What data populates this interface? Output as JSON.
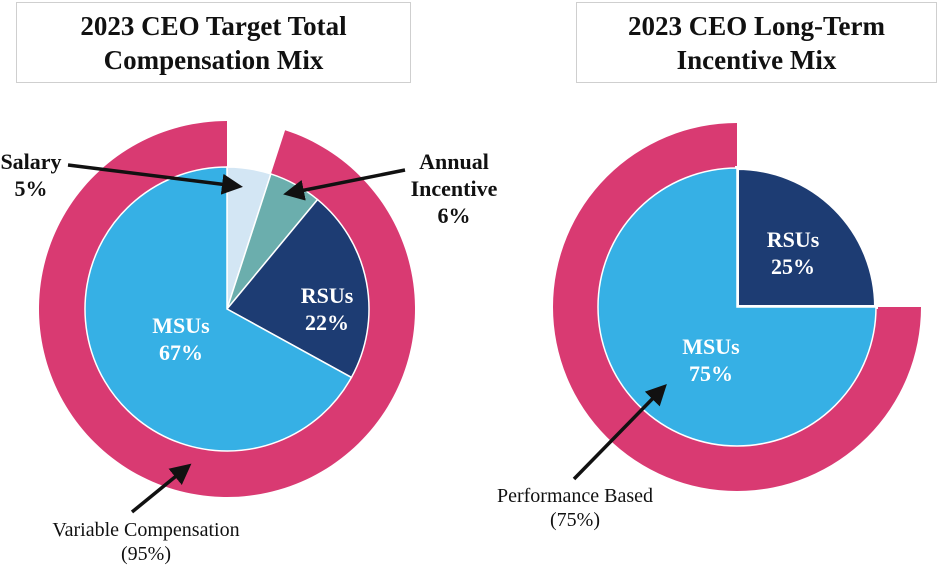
{
  "colors": {
    "ring": "#D93A72",
    "msus": "#36B0E5",
    "rsus": "#1D3C73",
    "annual": "#6BAEAD",
    "salary": "#D3E6F4",
    "arrow": "#111111"
  },
  "chart_data": [
    {
      "type": "pie",
      "title_lines": [
        "2023 CEO Target Total",
        "Compensation Mix"
      ],
      "slices": [
        {
          "name": "Salary",
          "label_lines": [
            "Salary",
            "5%"
          ],
          "value": 5,
          "color": "#D3E6F4",
          "label_position": "outside"
        },
        {
          "name": "Annual Incentive",
          "label_lines": [
            "Annual",
            "Incentive",
            "6%"
          ],
          "value": 6,
          "color": "#6BAEAD",
          "label_position": "outside"
        },
        {
          "name": "RSUs",
          "label_lines": [
            "RSUs",
            "22%"
          ],
          "value": 22,
          "color": "#1D3C73",
          "label_position": "inside"
        },
        {
          "name": "MSUs",
          "label_lines": [
            "MSUs",
            "67%"
          ],
          "value": 67,
          "color": "#36B0E5",
          "label_position": "inside"
        }
      ],
      "outer_ring": {
        "label_lines": [
          "Variable Compensation",
          "(95%)"
        ],
        "value": 95,
        "color": "#D93A72"
      }
    },
    {
      "type": "pie",
      "title_lines": [
        "2023 CEO Long-Term",
        "Incentive Mix"
      ],
      "slices": [
        {
          "name": "RSUs",
          "label_lines": [
            "RSUs",
            "25%"
          ],
          "value": 25,
          "color": "#1D3C73",
          "label_position": "inside"
        },
        {
          "name": "MSUs",
          "label_lines": [
            "MSUs",
            "75%"
          ],
          "value": 75,
          "color": "#36B0E5",
          "label_position": "inside"
        }
      ],
      "outer_ring": {
        "label_lines": [
          "Performance Based",
          "(75%)"
        ],
        "value": 75,
        "color": "#D93A72"
      }
    }
  ]
}
